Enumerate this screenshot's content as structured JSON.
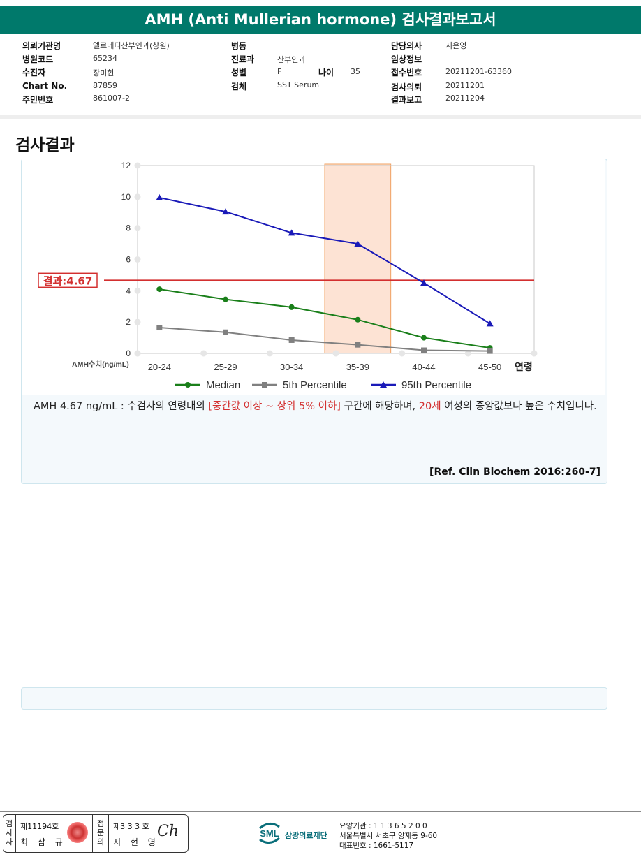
{
  "header": {
    "title": "AMH (Anti Mullerian hormone) 검사결과보고서"
  },
  "patient_info": {
    "institution_label": "의뢰기관명",
    "institution": "엘르메디산부인과(창원)",
    "hospital_code_label": "병원코드",
    "hospital_code": "65234",
    "patient_label": "수진자",
    "patient": "장미현",
    "chart_no_label": "Chart No.",
    "chart_no": "87859",
    "resident_no_label": "주민번호",
    "resident_no": "861007-2",
    "ward_label": "병동",
    "ward": "",
    "department_label": "진료과",
    "department": "산부인과",
    "sex_label": "성별",
    "sex": "F",
    "age_label": "나이",
    "age": "35",
    "specimen_label": "검체",
    "specimen": "SST Serum",
    "doctor_label": "담당의사",
    "doctor": "지은영",
    "clinical_label": "임상정보",
    "clinical": "",
    "accession_label": "접수번호",
    "accession": "20211201-63360",
    "requested_label": "검사의뢰",
    "requested": "20211201",
    "reported_label": "결과보고",
    "reported": "20211204"
  },
  "section_title": "검사결과",
  "chart_data": {
    "type": "line",
    "categories": [
      "20-24",
      "25-29",
      "30-34",
      "35-39",
      "40-44",
      "45-50"
    ],
    "series": [
      {
        "name": "Median",
        "color": "#1a7f1a",
        "marker": "circle",
        "values": [
          4.1,
          3.45,
          2.95,
          2.15,
          1.0,
          0.35
        ]
      },
      {
        "name": "5th Percentile",
        "color": "#808080",
        "marker": "square",
        "values": [
          1.65,
          1.35,
          0.85,
          0.55,
          0.2,
          0.15
        ]
      },
      {
        "name": "95th Percentile",
        "color": "#1a1ab8",
        "marker": "triangle",
        "values": [
          9.95,
          9.05,
          7.7,
          7.0,
          4.5,
          1.9
        ]
      }
    ],
    "ylim": [
      0,
      12
    ],
    "yticks": [
      "0",
      "2",
      "4",
      "6",
      "8",
      "10",
      "12"
    ],
    "ylabel": "AMH수치(ng/mL)",
    "xlabel": "연령",
    "highlight_category": "35-39",
    "highlight_color": "#fde3d4",
    "result_line": {
      "value": 4.67,
      "label": "결과:4.67",
      "color": "#d32f2f"
    },
    "legend_position": "bottom"
  },
  "comment": {
    "prefix": "AMH  4.67 ng/mL : 수검자의 연령대의 ",
    "range": "[중간값 이상 ~ 상위 5% 이하]",
    "middle": "  구간에 해당하며, ",
    "age": "20세",
    "suffix": " 여성의 중앙값보다 높은 수치입니다."
  },
  "reference": "[Ref. Clin Biochem 2016:260-7]",
  "footer": {
    "examiner_vertical": "검사자",
    "examiner_license": "제11194호",
    "examiner_name": "최 삼 규",
    "confirmer_vertical": "접문의",
    "confirmer_license": "제3 3 3 호",
    "confirmer_name": "지 현 영",
    "org_name": "삼광의료재단",
    "org_abbr": "SML",
    "provider_code": "요양기관 : 1 1 3 6 5 2 0 0",
    "address": "서울특별시 서초구 양재동 9-60",
    "phone": "대표번호 : 1661-5117"
  }
}
